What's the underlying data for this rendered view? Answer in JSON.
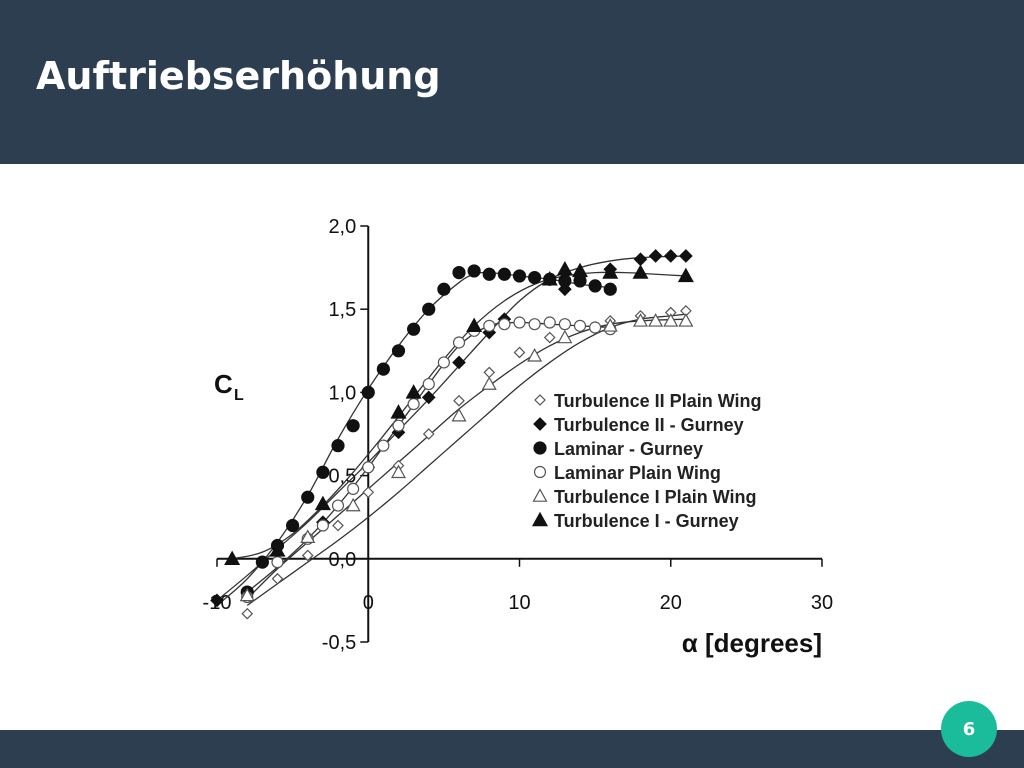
{
  "slide": {
    "title": "Auftriebserhöhung",
    "page_number": "6"
  },
  "colors": {
    "header_bg": "#2c3e50",
    "badge": "#1abc9c"
  },
  "chart_data": {
    "type": "scatter",
    "xlabel": "α [degrees]",
    "ylabel": "C",
    "ylabel_sub": "L",
    "xlim": [
      -10,
      30
    ],
    "ylim": [
      -0.5,
      2.0
    ],
    "x_ticks": [
      -10,
      0,
      10,
      20,
      30
    ],
    "x_tick_labels": [
      "-10",
      "0",
      "10",
      "20",
      "30"
    ],
    "y_ticks": [
      -0.5,
      0.0,
      0.5,
      1.0,
      1.5,
      2.0
    ],
    "y_tick_labels": [
      "-0,5",
      "0,0",
      "0,5",
      "1,0",
      "1,5",
      "2,0"
    ],
    "grid": false,
    "legend_position": "center-right",
    "series": [
      {
        "name": "Turbulence II Plain Wing",
        "marker": "diamond-open",
        "x": [
          -8,
          -6,
          -4,
          -2,
          0,
          2,
          4,
          6,
          8,
          10,
          12,
          14,
          16,
          18,
          20,
          21
        ],
        "y": [
          -0.33,
          -0.12,
          0.02,
          0.2,
          0.4,
          0.56,
          0.75,
          0.95,
          1.12,
          1.24,
          1.33,
          1.4,
          1.43,
          1.46,
          1.48,
          1.49
        ],
        "curve_x": [
          -8,
          -6,
          -4,
          -2,
          0,
          2,
          4,
          6,
          8,
          10,
          12,
          14,
          16,
          18,
          20,
          21
        ],
        "curve_y": [
          -0.28,
          -0.15,
          -0.02,
          0.11,
          0.25,
          0.4,
          0.56,
          0.72,
          0.88,
          1.04,
          1.18,
          1.3,
          1.39,
          1.44,
          1.46,
          1.47
        ]
      },
      {
        "name": "Turbulence II - Gurney",
        "marker": "diamond-filled",
        "x": [
          -10,
          -3,
          0,
          2,
          4,
          6,
          8,
          9,
          13,
          16,
          18,
          19,
          20,
          21
        ],
        "y": [
          -0.25,
          0.22,
          0.55,
          0.76,
          0.97,
          1.18,
          1.36,
          1.44,
          1.62,
          1.74,
          1.8,
          1.82,
          1.82,
          1.82
        ],
        "curve_x": [
          -10,
          -8,
          -6,
          -4,
          -2,
          0,
          2,
          4,
          6,
          8,
          10,
          12,
          14,
          16,
          18,
          21
        ],
        "curve_y": [
          -0.25,
          -0.1,
          0.06,
          0.22,
          0.4,
          0.58,
          0.77,
          0.96,
          1.16,
          1.36,
          1.55,
          1.68,
          1.75,
          1.79,
          1.81,
          1.82
        ]
      },
      {
        "name": "Laminar - Gurney",
        "marker": "circle-filled",
        "x": [
          -8,
          -7,
          -6,
          -5,
          -4,
          -3,
          -2,
          -1,
          0,
          1,
          2,
          3,
          4,
          5,
          6,
          7,
          8,
          9,
          10,
          11,
          12,
          13,
          14,
          15,
          16
        ],
        "y": [
          -0.2,
          -0.02,
          0.08,
          0.2,
          0.37,
          0.52,
          0.68,
          0.8,
          1.0,
          1.14,
          1.25,
          1.38,
          1.5,
          1.62,
          1.72,
          1.73,
          1.71,
          1.71,
          1.7,
          1.69,
          1.68,
          1.67,
          1.67,
          1.64,
          1.62
        ],
        "curve_x": [
          -10,
          -8,
          -6,
          -4,
          -2,
          0,
          2,
          4,
          6,
          7,
          8,
          10,
          12,
          14,
          16
        ],
        "curve_y": [
          -0.28,
          -0.12,
          0.1,
          0.38,
          0.72,
          1.02,
          1.28,
          1.5,
          1.66,
          1.71,
          1.72,
          1.7,
          1.68,
          1.65,
          1.63
        ]
      },
      {
        "name": "Laminar Plain Wing",
        "marker": "circle-open",
        "x": [
          -8,
          -6,
          -4,
          -3,
          -2,
          -1,
          0,
          1,
          2,
          3,
          4,
          5,
          6,
          7,
          8,
          9,
          10,
          11,
          12,
          13,
          14,
          15,
          16
        ],
        "y": [
          -0.23,
          -0.02,
          0.12,
          0.2,
          0.32,
          0.42,
          0.55,
          0.68,
          0.8,
          0.93,
          1.05,
          1.18,
          1.3,
          1.37,
          1.4,
          1.41,
          1.42,
          1.41,
          1.42,
          1.41,
          1.4,
          1.39,
          1.38
        ],
        "curve_x": [
          -8,
          -6,
          -4,
          -2,
          0,
          2,
          4,
          6,
          8,
          10,
          12,
          14,
          16
        ],
        "curve_y": [
          -0.2,
          -0.05,
          0.12,
          0.32,
          0.55,
          0.8,
          1.05,
          1.28,
          1.4,
          1.42,
          1.41,
          1.4,
          1.39
        ]
      },
      {
        "name": "Turbulence I Plain Wing",
        "marker": "triangle-open",
        "x": [
          -8,
          -4,
          -1,
          2,
          6,
          8,
          11,
          13,
          16,
          18,
          19,
          20,
          21
        ],
        "y": [
          -0.22,
          0.13,
          0.32,
          0.52,
          0.86,
          1.05,
          1.22,
          1.33,
          1.4,
          1.43,
          1.43,
          1.43,
          1.43
        ],
        "curve_x": [
          -8,
          -6,
          -4,
          -2,
          0,
          2,
          4,
          6,
          8,
          10,
          12,
          14,
          16,
          18,
          21
        ],
        "curve_y": [
          -0.24,
          -0.06,
          0.1,
          0.26,
          0.42,
          0.58,
          0.74,
          0.9,
          1.04,
          1.17,
          1.28,
          1.36,
          1.41,
          1.43,
          1.44
        ]
      },
      {
        "name": "Turbulence I - Gurney",
        "marker": "triangle-filled",
        "x": [
          -9,
          -6,
          -3,
          2,
          3,
          7,
          12,
          13,
          14,
          16,
          18,
          21
        ],
        "y": [
          0.0,
          0.05,
          0.33,
          0.88,
          1.0,
          1.4,
          1.68,
          1.74,
          1.73,
          1.72,
          1.72,
          1.7
        ],
        "curve_x": [
          -9,
          -7,
          -5,
          -3,
          -1,
          1,
          3,
          5,
          7,
          9,
          11,
          13,
          15,
          17,
          19,
          21
        ],
        "curve_y": [
          0.0,
          0.04,
          0.15,
          0.32,
          0.52,
          0.74,
          0.97,
          1.2,
          1.4,
          1.55,
          1.65,
          1.7,
          1.72,
          1.72,
          1.71,
          1.7
        ]
      }
    ]
  }
}
